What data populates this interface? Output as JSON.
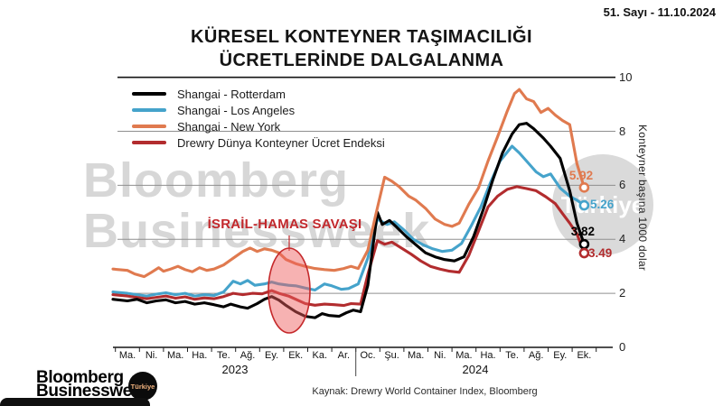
{
  "header": {
    "issue": "51. Sayı - 11.10.2024",
    "title_line1": "KÜRESEL KONTEYNER TAŞIMACILIĞI",
    "title_line2": "ÜCRETLERİNDE DALGALANMA"
  },
  "legend": [
    {
      "label": "Shangai - Rotterdam",
      "color": "#000000"
    },
    {
      "label": "Shangai - Los Angeles",
      "color": "#45a3cb"
    },
    {
      "label": "Shangai - New York",
      "color": "#e07a4f"
    },
    {
      "label": "Drewry Dünya Konteyner Ücret Endeksi",
      "color": "#b22c2e"
    }
  ],
  "annotation": {
    "text": "İSRAİL-HAMAS SAVAŞI"
  },
  "watermark": {
    "line1": "Bloomberg",
    "line2": "Businessweek",
    "circle": "Türkiye"
  },
  "axis": {
    "y_label": "Konteyner başına 1000 dolar",
    "y_ticks": [
      10,
      8,
      6,
      4,
      2,
      0
    ],
    "months": [
      "Ma.",
      "Ni.",
      "Ma.",
      "Ha.",
      "Te.",
      "Ağ.",
      "Ey.",
      "Ek.",
      "Ka.",
      "Ar.",
      "Oc.",
      "Şu.",
      "Ma.",
      "Ni.",
      "Ma.",
      "Ha.",
      "Te.",
      "Ağ.",
      "Ey.",
      "Ek."
    ],
    "years": [
      "2023",
      "2024"
    ]
  },
  "end_labels": [
    {
      "value": "5.92",
      "color": "#e07a4f"
    },
    {
      "value": "5.26",
      "color": "#45a3cb"
    },
    {
      "value": "3.82",
      "color": "#000000"
    },
    {
      "value": "3.49",
      "color": "#b22c2e"
    }
  ],
  "source": "Kaynak: Drewry World Container Index, Bloomberg",
  "footer_logo": {
    "line1": "Bloomberg",
    "line2": "Businessweek",
    "badge": "Türkiye"
  },
  "chart_data": {
    "type": "line",
    "title": "KÜRESEL KONTEYNER TAŞIMACILIĞI ÜCRETLERİNDE DALGALANMA",
    "ylabel": "Konteyner başına 1000 dolar",
    "ylim": [
      0,
      10
    ],
    "grid": true,
    "legend_position": "top-left",
    "x_axis": "Months Mar 2023 - Oct 2024 (Turkish abbreviations)",
    "annotation_text": "İSRAİL-HAMAS SAVAŞI",
    "annotation_x_month": 6.8,
    "series": [
      {
        "name": "Shangai - Rotterdam",
        "color": "#000000",
        "end_value": 3.82,
        "points": [
          [
            -0.6,
            1.78
          ],
          [
            0,
            1.72
          ],
          [
            0.4,
            1.78
          ],
          [
            0.8,
            1.65
          ],
          [
            1.2,
            1.72
          ],
          [
            1.6,
            1.76
          ],
          [
            2,
            1.65
          ],
          [
            2.4,
            1.7
          ],
          [
            2.8,
            1.6
          ],
          [
            3.2,
            1.65
          ],
          [
            3.6,
            1.58
          ],
          [
            4,
            1.5
          ],
          [
            4.3,
            1.6
          ],
          [
            4.7,
            1.5
          ],
          [
            5,
            1.45
          ],
          [
            5.4,
            1.62
          ],
          [
            5.7,
            1.78
          ],
          [
            6,
            1.88
          ],
          [
            6.3,
            1.75
          ],
          [
            6.6,
            1.55
          ],
          [
            7,
            1.32
          ],
          [
            7.4,
            1.15
          ],
          [
            7.8,
            1.1
          ],
          [
            8.1,
            1.25
          ],
          [
            8.4,
            1.18
          ],
          [
            8.8,
            1.15
          ],
          [
            9.1,
            1.28
          ],
          [
            9.4,
            1.38
          ],
          [
            9.7,
            1.32
          ],
          [
            10,
            2.3
          ],
          [
            10.4,
            5.0
          ],
          [
            10.6,
            4.55
          ],
          [
            10.9,
            4.7
          ],
          [
            11.2,
            4.45
          ],
          [
            11.6,
            4.1
          ],
          [
            12,
            3.8
          ],
          [
            12.4,
            3.5
          ],
          [
            12.8,
            3.35
          ],
          [
            13.2,
            3.25
          ],
          [
            13.6,
            3.2
          ],
          [
            14,
            3.35
          ],
          [
            14.4,
            4.1
          ],
          [
            14.8,
            5.1
          ],
          [
            15.2,
            6.2
          ],
          [
            15.6,
            7.2
          ],
          [
            16,
            7.9
          ],
          [
            16.3,
            8.25
          ],
          [
            16.6,
            8.3
          ],
          [
            16.9,
            8.1
          ],
          [
            17.3,
            7.75
          ],
          [
            17.6,
            7.45
          ],
          [
            18,
            7.0
          ],
          [
            18.4,
            5.8
          ],
          [
            18.7,
            4.6
          ],
          [
            19,
            3.82
          ]
        ]
      },
      {
        "name": "Shangai - Los Angeles",
        "color": "#45a3cb",
        "end_value": 5.26,
        "points": [
          [
            -0.6,
            2.05
          ],
          [
            0,
            2.0
          ],
          [
            0.4,
            1.95
          ],
          [
            0.8,
            1.9
          ],
          [
            1.2,
            1.97
          ],
          [
            1.6,
            2.02
          ],
          [
            2,
            1.95
          ],
          [
            2.4,
            2.0
          ],
          [
            2.8,
            1.9
          ],
          [
            3.2,
            1.95
          ],
          [
            3.6,
            1.92
          ],
          [
            4,
            2.05
          ],
          [
            4.4,
            2.45
          ],
          [
            4.7,
            2.35
          ],
          [
            5,
            2.48
          ],
          [
            5.3,
            2.3
          ],
          [
            5.7,
            2.35
          ],
          [
            6,
            2.42
          ],
          [
            6.3,
            2.35
          ],
          [
            6.7,
            2.3
          ],
          [
            7,
            2.28
          ],
          [
            7.4,
            2.2
          ],
          [
            7.8,
            2.12
          ],
          [
            8.2,
            2.35
          ],
          [
            8.5,
            2.28
          ],
          [
            8.9,
            2.15
          ],
          [
            9.2,
            2.18
          ],
          [
            9.6,
            2.35
          ],
          [
            10,
            3.3
          ],
          [
            10.4,
            4.75
          ],
          [
            10.8,
            4.55
          ],
          [
            11.1,
            4.65
          ],
          [
            11.5,
            4.35
          ],
          [
            11.9,
            4.0
          ],
          [
            12.3,
            3.8
          ],
          [
            12.7,
            3.65
          ],
          [
            13.1,
            3.55
          ],
          [
            13.5,
            3.6
          ],
          [
            13.9,
            3.85
          ],
          [
            14.3,
            4.5
          ],
          [
            14.7,
            5.2
          ],
          [
            15.1,
            6.1
          ],
          [
            15.5,
            6.9
          ],
          [
            16,
            7.45
          ],
          [
            16.3,
            7.2
          ],
          [
            16.6,
            6.9
          ],
          [
            17,
            6.5
          ],
          [
            17.3,
            6.32
          ],
          [
            17.6,
            6.42
          ],
          [
            18,
            5.9
          ],
          [
            18.4,
            5.6
          ],
          [
            18.7,
            5.45
          ],
          [
            19,
            5.26
          ]
        ]
      },
      {
        "name": "Shangai - New York",
        "color": "#e07a4f",
        "end_value": 5.92,
        "points": [
          [
            -0.6,
            2.9
          ],
          [
            0,
            2.85
          ],
          [
            0.3,
            2.72
          ],
          [
            0.7,
            2.62
          ],
          [
            1,
            2.78
          ],
          [
            1.3,
            2.95
          ],
          [
            1.5,
            2.82
          ],
          [
            1.8,
            2.9
          ],
          [
            2.1,
            3.0
          ],
          [
            2.4,
            2.88
          ],
          [
            2.7,
            2.8
          ],
          [
            3,
            2.95
          ],
          [
            3.3,
            2.85
          ],
          [
            3.6,
            2.9
          ],
          [
            4,
            3.05
          ],
          [
            4.4,
            3.3
          ],
          [
            4.8,
            3.55
          ],
          [
            5.1,
            3.68
          ],
          [
            5.4,
            3.55
          ],
          [
            5.7,
            3.65
          ],
          [
            6,
            3.6
          ],
          [
            6.3,
            3.5
          ],
          [
            6.6,
            3.25
          ],
          [
            7,
            3.1
          ],
          [
            7.4,
            3.0
          ],
          [
            7.8,
            2.92
          ],
          [
            8.2,
            2.88
          ],
          [
            8.6,
            2.85
          ],
          [
            9,
            2.92
          ],
          [
            9.3,
            3.0
          ],
          [
            9.6,
            2.92
          ],
          [
            10,
            3.6
          ],
          [
            10.3,
            4.8
          ],
          [
            10.7,
            6.3
          ],
          [
            11,
            6.15
          ],
          [
            11.3,
            5.95
          ],
          [
            11.7,
            5.6
          ],
          [
            12,
            5.45
          ],
          [
            12.4,
            5.15
          ],
          [
            12.8,
            4.75
          ],
          [
            13.2,
            4.55
          ],
          [
            13.5,
            4.48
          ],
          [
            13.8,
            4.6
          ],
          [
            14.2,
            5.3
          ],
          [
            14.6,
            5.9
          ],
          [
            15,
            6.9
          ],
          [
            15.4,
            7.8
          ],
          [
            15.8,
            8.75
          ],
          [
            16.1,
            9.4
          ],
          [
            16.3,
            9.55
          ],
          [
            16.6,
            9.2
          ],
          [
            16.9,
            9.1
          ],
          [
            17.2,
            8.7
          ],
          [
            17.5,
            8.85
          ],
          [
            17.8,
            8.6
          ],
          [
            18.1,
            8.4
          ],
          [
            18.4,
            8.25
          ],
          [
            18.7,
            6.8
          ],
          [
            19,
            5.92
          ]
        ]
      },
      {
        "name": "Drewry Dünya Konteyner Ücret Endeksi",
        "color": "#b22c2e",
        "end_value": 3.49,
        "points": [
          [
            -0.6,
            1.95
          ],
          [
            0,
            1.9
          ],
          [
            0.4,
            1.85
          ],
          [
            0.8,
            1.8
          ],
          [
            1.2,
            1.85
          ],
          [
            1.6,
            1.9
          ],
          [
            2,
            1.82
          ],
          [
            2.4,
            1.87
          ],
          [
            2.8,
            1.78
          ],
          [
            3.2,
            1.83
          ],
          [
            3.6,
            1.8
          ],
          [
            4,
            1.88
          ],
          [
            4.4,
            2.0
          ],
          [
            4.8,
            1.95
          ],
          [
            5.2,
            2.0
          ],
          [
            5.6,
            1.98
          ],
          [
            6,
            2.1
          ],
          [
            6.3,
            2.0
          ],
          [
            6.7,
            1.9
          ],
          [
            7,
            1.78
          ],
          [
            7.4,
            1.62
          ],
          [
            7.8,
            1.56
          ],
          [
            8.2,
            1.6
          ],
          [
            8.6,
            1.58
          ],
          [
            9,
            1.55
          ],
          [
            9.3,
            1.62
          ],
          [
            9.7,
            1.6
          ],
          [
            10,
            2.7
          ],
          [
            10.4,
            3.95
          ],
          [
            10.7,
            3.82
          ],
          [
            11,
            3.9
          ],
          [
            11.4,
            3.68
          ],
          [
            11.8,
            3.45
          ],
          [
            12.2,
            3.2
          ],
          [
            12.6,
            3.0
          ],
          [
            13,
            2.9
          ],
          [
            13.4,
            2.82
          ],
          [
            13.8,
            2.78
          ],
          [
            14.2,
            3.4
          ],
          [
            14.6,
            4.3
          ],
          [
            15,
            5.2
          ],
          [
            15.4,
            5.6
          ],
          [
            15.8,
            5.85
          ],
          [
            16.2,
            5.95
          ],
          [
            16.6,
            5.88
          ],
          [
            17,
            5.8
          ],
          [
            17.4,
            5.58
          ],
          [
            17.8,
            5.32
          ],
          [
            18.1,
            4.95
          ],
          [
            18.4,
            4.6
          ],
          [
            18.7,
            4.2
          ],
          [
            19,
            3.49
          ]
        ]
      }
    ]
  }
}
